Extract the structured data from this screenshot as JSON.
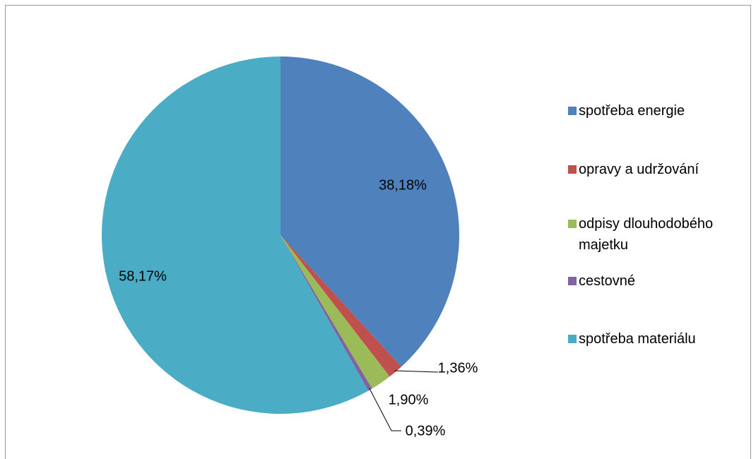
{
  "chart_data": {
    "type": "pie",
    "categories": [
      "spotřeba energie",
      "opravy a udržování",
      "odpisy dlouhodobého majetku",
      "cestovné",
      "spotřeba materiálu"
    ],
    "values": [
      38.18,
      1.36,
      1.9,
      0.39,
      58.17
    ],
    "value_labels": [
      "38,18%",
      "1,36%",
      "1,90%",
      "0,39%",
      "58,17%"
    ],
    "colors": [
      "#4f81bd",
      "#c0504d",
      "#9bbb59",
      "#8064a2",
      "#4bacc6"
    ],
    "legend": "right"
  }
}
